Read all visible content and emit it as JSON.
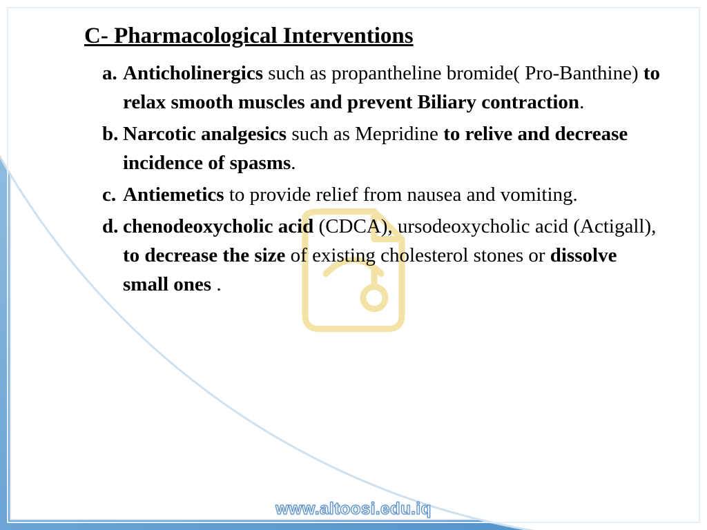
{
  "background": {
    "gradient_from": "#9ec4e4",
    "gradient_mid": "#6da6d4",
    "gradient_to": "#4b8fc9",
    "panel_bg": "#ffffff",
    "panel_border": "#d6e3ef",
    "arc_border": "#cfe0ee"
  },
  "watermark": {
    "stroke": "#e8c94f",
    "opacity": 0.5
  },
  "heading": {
    "text": "C- Pharmacological Interventions",
    "font_size": 33,
    "underline": true,
    "bold": true,
    "color": "#000000"
  },
  "list": {
    "font_size": 29,
    "line_height": 1.45,
    "color": "#000000",
    "items": [
      {
        "marker": "a.",
        "runs": [
          {
            "text": "Anticholinergics",
            "bold": true
          },
          {
            "text": " such as propantheline bromide( Pro-Banthine) ",
            "bold": false
          },
          {
            "text": "to relax smooth muscles and prevent Biliary contraction",
            "bold": true
          },
          {
            "text": ".",
            "bold": false
          }
        ]
      },
      {
        "marker": "b.",
        "runs": [
          {
            "text": "Narcotic analgesics",
            "bold": true
          },
          {
            "text": " such as Mepridine ",
            "bold": false
          },
          {
            "text": "to relive and decrease incidence of spasms",
            "bold": true
          },
          {
            "text": ".",
            "bold": false
          }
        ]
      },
      {
        "marker": "c.",
        "runs": [
          {
            "text": "Antiemetics",
            "bold": true
          },
          {
            "text": " to provide relief from nausea and vomiting.",
            "bold": false
          }
        ]
      },
      {
        "marker": "d.",
        "runs": [
          {
            "text": "chenodeoxycholic acid",
            "bold": true
          },
          {
            "text": " (CDCA), ursodeoxycholic acid (Actigall), ",
            "bold": false
          },
          {
            "text": "to decrease the size",
            "bold": true
          },
          {
            "text": " of existing cholesterol stones or ",
            "bold": false
          },
          {
            "text": "dissolve small ones",
            "bold": true
          },
          {
            "text": " .",
            "bold": false
          }
        ]
      }
    ]
  },
  "footer": {
    "url": "www.altoosi.edu.iq",
    "font_size": 24,
    "fill": "#ffffff",
    "stroke": "#5a8fc8"
  }
}
